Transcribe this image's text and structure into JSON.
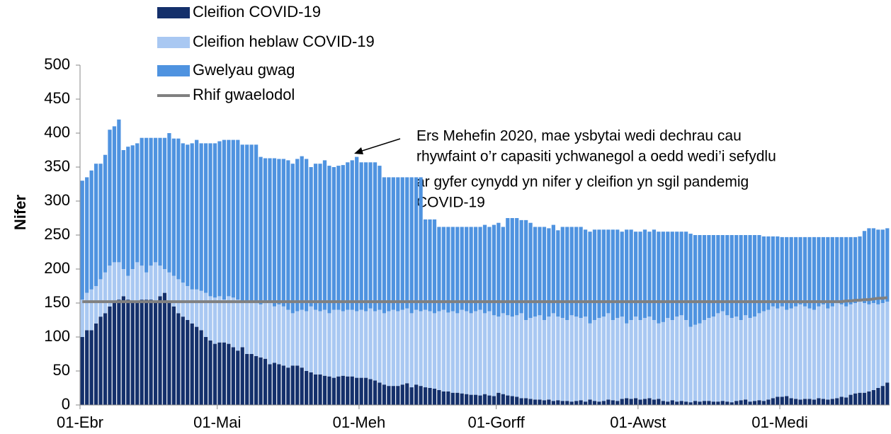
{
  "chart_data": {
    "type": "bar",
    "stacked": true,
    "y_label": "Nifer",
    "annotation": [
      "Ers Mehefin 2020, mae ysbytai wedi dechrau cau",
      "rhywfaint o’r capasiti ychwanegol a oedd wedi’i sefydlu",
      "ar gyfer cynydd yn nifer y cleifion yn sgil pandemig",
      "COVID-19"
    ],
    "ylim": [
      0,
      500
    ],
    "yticks": [
      0,
      50,
      100,
      150,
      200,
      250,
      300,
      350,
      400,
      450,
      500
    ],
    "grid": false,
    "legend": "top-left",
    "categories": [
      "01-Ebr",
      null,
      null,
      null,
      null,
      null,
      null,
      null,
      null,
      null,
      null,
      null,
      null,
      null,
      null,
      null,
      null,
      null,
      null,
      null,
      null,
      null,
      null,
      null,
      null,
      null,
      null,
      null,
      null,
      null,
      "01-Mai",
      null,
      null,
      null,
      null,
      null,
      null,
      null,
      null,
      null,
      null,
      null,
      null,
      null,
      null,
      null,
      null,
      null,
      null,
      null,
      null,
      null,
      null,
      null,
      null,
      null,
      null,
      null,
      null,
      null,
      null,
      "01-Meh",
      null,
      null,
      null,
      null,
      null,
      null,
      null,
      null,
      null,
      null,
      null,
      null,
      null,
      null,
      null,
      null,
      null,
      null,
      null,
      null,
      null,
      null,
      null,
      null,
      null,
      null,
      null,
      null,
      null,
      "01-Gorff",
      null,
      null,
      null,
      null,
      null,
      null,
      null,
      null,
      null,
      null,
      null,
      null,
      null,
      null,
      null,
      null,
      null,
      null,
      null,
      null,
      null,
      null,
      null,
      null,
      null,
      null,
      null,
      null,
      null,
      null,
      "01-Awst",
      null,
      null,
      null,
      null,
      null,
      null,
      null,
      null,
      null,
      null,
      null,
      null,
      null,
      null,
      null,
      null,
      null,
      null,
      null,
      null,
      null,
      null,
      null,
      null,
      null,
      null,
      null,
      null,
      null,
      null,
      "01-Medi",
      null,
      null,
      null,
      null,
      null,
      null,
      null,
      null,
      null,
      null,
      null,
      null,
      null,
      null,
      null,
      null,
      null,
      null,
      null,
      null,
      null,
      null,
      null
    ],
    "series": [
      {
        "name": "Cleifion COVID-19",
        "color": "#14306b",
        "values": [
          100,
          110,
          110,
          120,
          130,
          135,
          145,
          150,
          155,
          160,
          155,
          150,
          150,
          155,
          155,
          155,
          150,
          160,
          165,
          150,
          145,
          135,
          130,
          125,
          120,
          115,
          110,
          100,
          95,
          90,
          92,
          92,
          90,
          85,
          80,
          85,
          75,
          75,
          72,
          70,
          68,
          60,
          62,
          60,
          58,
          55,
          58,
          58,
          55,
          50,
          48,
          45,
          45,
          43,
          42,
          40,
          42,
          43,
          42,
          42,
          40,
          40,
          40,
          38,
          36,
          33,
          30,
          28,
          28,
          28,
          30,
          32,
          26,
          30,
          28,
          26,
          25,
          24,
          22,
          20,
          20,
          18,
          18,
          17,
          16,
          15,
          15,
          14,
          16,
          14,
          13,
          18,
          16,
          14,
          13,
          12,
          10,
          10,
          9,
          8,
          8,
          7,
          8,
          6,
          7,
          6,
          6,
          5,
          6,
          7,
          5,
          8,
          6,
          5,
          6,
          8,
          7,
          6,
          9,
          10,
          9,
          10,
          8,
          9,
          10,
          8,
          9,
          6,
          5,
          7,
          5,
          6,
          5,
          4,
          6,
          5,
          6,
          6,
          5,
          5,
          6,
          5,
          4,
          6,
          7,
          8,
          5,
          6,
          7,
          6,
          8,
          10,
          12,
          12,
          13,
          10,
          9,
          8,
          9,
          9,
          8,
          10,
          9,
          8,
          9,
          10,
          12,
          11,
          15,
          17,
          18,
          18,
          20,
          22,
          25,
          28,
          33
        ]
      },
      {
        "name": "Cleifion heblaw COVID-19",
        "color": "#a9c8f2",
        "values": [
          55,
          55,
          60,
          55,
          55,
          60,
          60,
          60,
          55,
          40,
          35,
          50,
          60,
          50,
          40,
          50,
          60,
          45,
          35,
          45,
          45,
          50,
          50,
          50,
          50,
          55,
          58,
          65,
          65,
          68,
          68,
          63,
          70,
          73,
          75,
          65,
          75,
          77,
          78,
          78,
          82,
          90,
          83,
          88,
          87,
          85,
          77,
          80,
          85,
          88,
          97,
          95,
          93,
          97,
          93,
          100,
          98,
          95,
          98,
          98,
          98,
          100,
          98,
          104,
          102,
          107,
          105,
          110,
          112,
          110,
          110,
          110,
          109,
          110,
          110,
          114,
          113,
          111,
          116,
          120,
          116,
          120,
          117,
          123,
          122,
          120,
          123,
          126,
          119,
          124,
          119,
          112,
          119,
          118,
          117,
          120,
          125,
          115,
          119,
          122,
          124,
          118,
          122,
          129,
          123,
          122,
          119,
          127,
          124,
          121,
          125,
          112,
          119,
          123,
          124,
          127,
          118,
          122,
          121,
          110,
          116,
          120,
          117,
          119,
          120,
          117,
          111,
          116,
          123,
          118,
          125,
          126,
          120,
          111,
          112,
          115,
          119,
          122,
          125,
          130,
          132,
          127,
          124,
          124,
          118,
          124,
          123,
          124,
          128,
          132,
          132,
          135,
          130,
          133,
          127,
          132,
          136,
          140,
          136,
          133,
          132,
          135,
          139,
          134,
          136,
          140,
          136,
          134,
          133,
          133,
          134,
          132,
          128,
          128,
          123,
          122,
          119
        ]
      },
      {
        "name": "Gwelyau gwag",
        "color": "#4f93e0",
        "values": [
          175,
          170,
          175,
          180,
          170,
          173,
          200,
          200,
          210,
          175,
          190,
          182,
          175,
          188,
          198,
          188,
          183,
          188,
          193,
          205,
          202,
          207,
          205,
          208,
          215,
          220,
          217,
          220,
          225,
          227,
          228,
          235,
          230,
          232,
          235,
          233,
          233,
          231,
          233,
          217,
          213,
          213,
          218,
          214,
          217,
          220,
          220,
          224,
          226,
          224,
          205,
          215,
          217,
          220,
          217,
          210,
          212,
          215,
          217,
          220,
          227,
          217,
          219,
          215,
          219,
          212,
          200,
          197,
          195,
          197,
          195,
          193,
          200,
          195,
          197,
          133,
          135,
          138,
          124,
          122,
          126,
          124,
          127,
          122,
          124,
          127,
          124,
          122,
          130,
          124,
          133,
          138,
          127,
          143,
          145,
          143,
          137,
          147,
          140,
          132,
          130,
          137,
          130,
          130,
          127,
          134,
          137,
          130,
          132,
          134,
          128,
          135,
          133,
          130,
          128,
          123,
          133,
          130,
          125,
          138,
          133,
          125,
          130,
          130,
          125,
          133,
          135,
          133,
          127,
          130,
          125,
          123,
          130,
          137,
          132,
          130,
          125,
          122,
          120,
          115,
          112,
          118,
          122,
          120,
          125,
          118,
          122,
          120,
          115,
          110,
          108,
          103,
          106,
          102,
          107,
          105,
          102,
          99,
          102,
          105,
          107,
          102,
          99,
          105,
          102,
          97,
          99,
          102,
          99,
          97,
          96,
          106,
          112,
          110,
          110,
          108,
          108
        ]
      },
      {
        "name": "Rhif gwaelodol",
        "type": "line",
        "color": "#808080",
        "values": [
          152,
          152,
          152,
          152,
          152,
          152,
          152,
          152,
          152,
          152,
          152,
          152,
          152,
          152,
          152,
          152,
          152,
          152,
          152,
          152,
          152,
          152,
          152,
          152,
          152,
          152,
          152,
          152,
          152,
          152,
          152,
          152,
          152,
          152,
          152,
          152,
          152,
          152,
          152,
          152,
          152,
          152,
          152,
          152,
          152,
          152,
          152,
          152,
          152,
          152,
          152,
          152,
          152,
          152,
          152,
          152,
          152,
          152,
          152,
          152,
          152,
          152,
          152,
          152,
          152,
          152,
          152,
          152,
          152,
          152,
          152,
          152,
          152,
          152,
          152,
          152,
          152,
          152,
          152,
          152,
          152,
          152,
          152,
          152,
          152,
          152,
          152,
          152,
          152,
          152,
          152,
          152,
          152,
          152,
          152,
          152,
          152,
          152,
          152,
          152,
          152,
          152,
          152,
          152,
          152,
          152,
          152,
          152,
          152,
          152,
          152,
          152,
          152,
          152,
          152,
          152,
          152,
          152,
          152,
          152,
          152,
          152,
          152,
          152,
          152,
          152,
          152,
          152,
          152,
          152,
          152,
          152,
          152,
          152,
          152,
          152,
          152,
          152,
          152,
          152,
          152,
          152,
          152,
          152,
          152,
          152,
          152,
          152,
          152,
          152,
          152,
          152,
          152,
          152,
          152,
          152,
          152,
          152,
          152,
          152,
          152,
          152,
          152,
          152,
          152,
          152,
          152,
          153,
          153,
          154,
          154,
          155,
          155,
          156,
          157,
          157,
          158
        ]
      }
    ]
  }
}
